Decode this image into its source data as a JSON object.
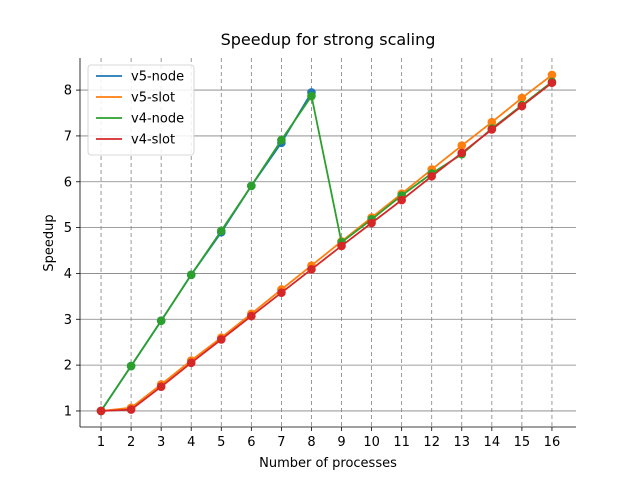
{
  "chart_data": {
    "type": "line",
    "title": "Speedup for strong scaling",
    "xlabel": "Number of processes",
    "ylabel": "Speedup",
    "x": [
      1,
      2,
      3,
      4,
      5,
      6,
      7,
      8,
      9,
      10,
      11,
      12,
      13,
      14,
      15,
      16
    ],
    "xlim": [
      0.3,
      16.8
    ],
    "ylim": [
      0.65,
      8.7
    ],
    "yticks": [
      1,
      2,
      3,
      4,
      5,
      6,
      7,
      8
    ],
    "grid": "vertical dashed, horizontal solid",
    "legend": "top-left",
    "series": [
      {
        "name": "v5-node",
        "color": "#1f77b4",
        "x": [
          1,
          2,
          3,
          4,
          5,
          6,
          7,
          8
        ],
        "values": [
          1.0,
          1.98,
          2.97,
          3.97,
          4.9,
          5.91,
          6.85,
          7.95
        ]
      },
      {
        "name": "v5-slot",
        "color": "#ff7f0e",
        "x": [
          1,
          2,
          3,
          4,
          5,
          6,
          7,
          8,
          9,
          10,
          11,
          12,
          13,
          14,
          15,
          16
        ],
        "values": [
          1.0,
          1.07,
          1.58,
          2.1,
          2.6,
          3.12,
          3.65,
          4.17,
          4.7,
          5.22,
          5.74,
          6.27,
          6.79,
          7.3,
          7.83,
          8.33
        ]
      },
      {
        "name": "v4-node",
        "color": "#2ca02c",
        "x": [
          1,
          2,
          3,
          4,
          5,
          6,
          7,
          8,
          9,
          10,
          11,
          12,
          13,
          14,
          15,
          16
        ],
        "values": [
          1.0,
          1.98,
          2.97,
          3.97,
          4.93,
          5.91,
          6.91,
          7.87,
          4.68,
          5.18,
          5.7,
          6.18,
          6.6,
          7.16,
          7.67,
          8.18
        ]
      },
      {
        "name": "v4-slot",
        "color": "#d62728",
        "x": [
          1,
          2,
          3,
          4,
          5,
          6,
          7,
          8,
          9,
          10,
          11,
          12,
          13,
          14,
          15,
          16
        ],
        "values": [
          1.0,
          1.03,
          1.53,
          2.05,
          2.56,
          3.07,
          3.58,
          4.09,
          4.6,
          5.1,
          5.6,
          6.12,
          6.63,
          7.14,
          7.65,
          8.16
        ]
      }
    ]
  }
}
